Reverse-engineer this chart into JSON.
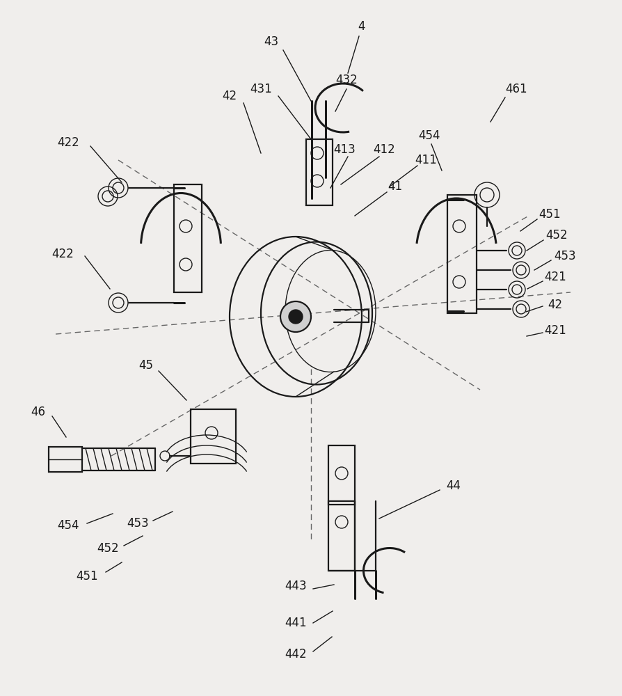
{
  "bg_color": "#f0eeec",
  "line_color": "#1a1a1a",
  "dashed_color": "#666666",
  "label_color": "#111111",
  "fig_w": 8.95,
  "fig_h": 10.0,
  "lw_main": 1.6,
  "lw_thin": 1.0,
  "lw_thick": 2.2,
  "fs": 12
}
